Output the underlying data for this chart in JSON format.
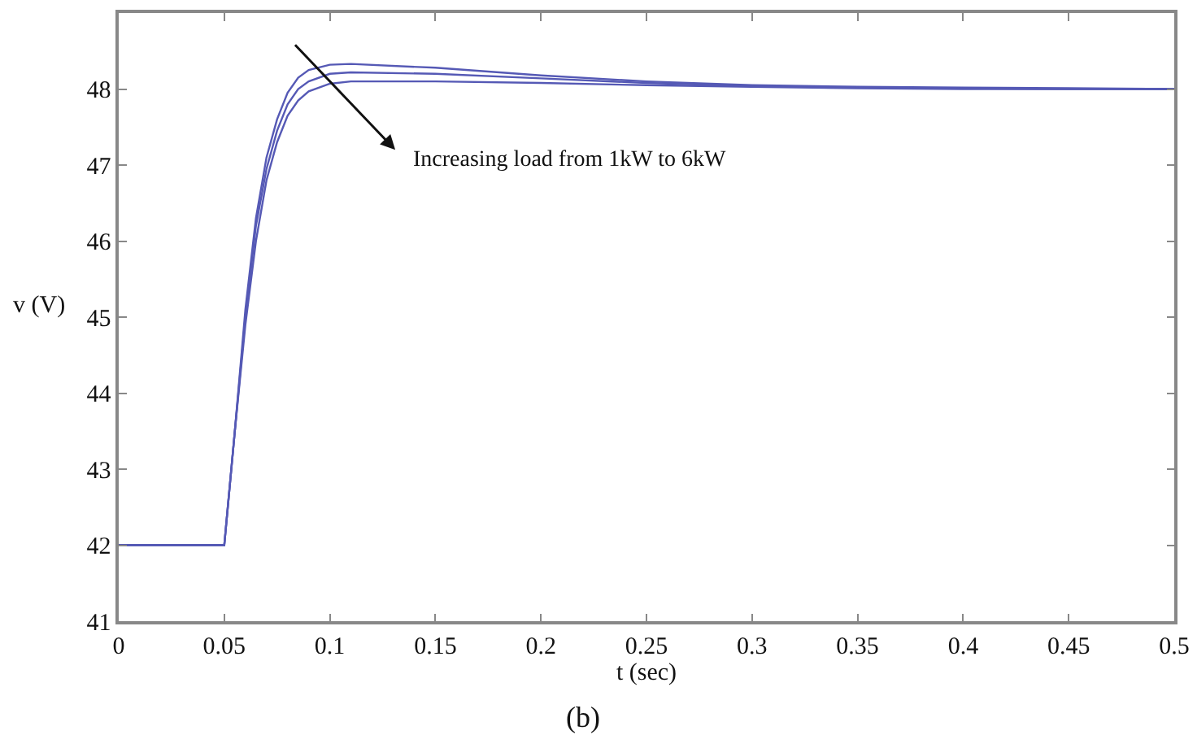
{
  "chart_data": {
    "type": "line",
    "xlabel": "t (sec)",
    "ylabel": "v (V)",
    "x": [
      0,
      0.05,
      0.055,
      0.06,
      0.065,
      0.07,
      0.075,
      0.08,
      0.085,
      0.09,
      0.1,
      0.11,
      0.15,
      0.2,
      0.25,
      0.3,
      0.35,
      0.4,
      0.45,
      0.5
    ],
    "series": [
      {
        "color": "#5559b5",
        "values": [
          42,
          42,
          43.5,
          45.1,
          46.3,
          47.1,
          47.6,
          47.95,
          48.15,
          48.25,
          48.32,
          48.33,
          48.28,
          48.18,
          48.1,
          48.05,
          48.03,
          48.02,
          48.01,
          48.0
        ]
      },
      {
        "color": "#5559b5",
        "values": [
          42,
          42,
          43.5,
          45.0,
          46.2,
          46.95,
          47.45,
          47.8,
          48.0,
          48.1,
          48.2,
          48.22,
          48.2,
          48.14,
          48.08,
          48.04,
          48.02,
          48.01,
          48.0,
          48.0
        ]
      },
      {
        "color": "#5559b5",
        "values": [
          42,
          42,
          43.5,
          44.9,
          46.0,
          46.8,
          47.3,
          47.65,
          47.85,
          47.97,
          48.07,
          48.1,
          48.1,
          48.08,
          48.05,
          48.03,
          48.01,
          48.0,
          48.0,
          48.0
        ]
      }
    ],
    "xlim": [
      0,
      0.5
    ],
    "xticks": [
      0,
      0.05,
      0.1,
      0.15,
      0.2,
      0.25,
      0.3,
      0.35,
      0.4,
      0.45,
      0.5
    ],
    "ylim": [
      41,
      49
    ],
    "yticks": [
      41,
      42,
      43,
      44,
      45,
      46,
      47,
      48
    ],
    "grid": false,
    "marker": "none",
    "line_style": "solid",
    "annotations": [
      "Increasing load from 1kW to 6kW",
      "(b)"
    ]
  }
}
